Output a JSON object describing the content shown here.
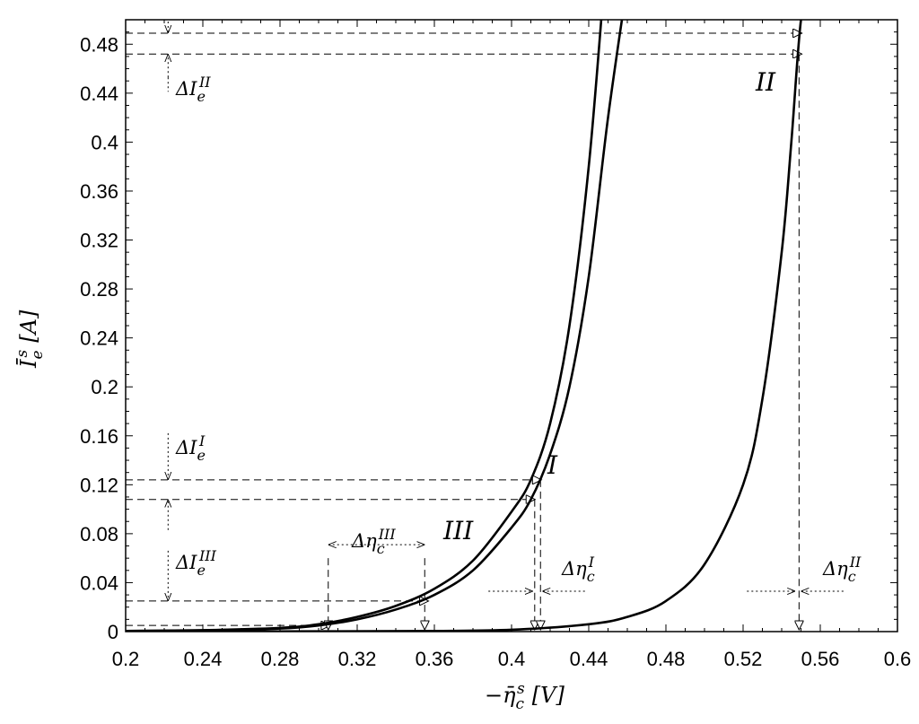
{
  "chart_data": {
    "type": "line",
    "xlabel_main": "−η̄",
    "xlabel_sup": "s",
    "xlabel_sub": "c",
    "xlabel_unit": "[V]",
    "ylabel_main": "Ī",
    "ylabel_sup": "s",
    "ylabel_sub": "e",
    "ylabel_unit": "[A]",
    "xlim": [
      0.2,
      0.6
    ],
    "ylim": [
      0,
      0.5
    ],
    "x_ticks": [
      "0.2",
      "0.24",
      "0.28",
      "0.32",
      "0.36",
      "0.4",
      "0.44",
      "0.48",
      "0.52",
      "0.56",
      "0.6"
    ],
    "y_ticks": [
      "0",
      "0.04",
      "0.08",
      "0.12",
      "0.16",
      "0.2",
      "0.24",
      "0.28",
      "0.32",
      "0.36",
      "0.4",
      "0.44",
      "0.48"
    ],
    "grid": false,
    "series": [
      {
        "name": "I",
        "x": [
          0.2,
          0.24,
          0.28,
          0.3,
          0.32,
          0.34,
          0.36,
          0.38,
          0.4,
          0.41,
          0.42,
          0.43,
          0.44,
          0.45,
          0.46
        ],
        "y": [
          0.0005,
          0.001,
          0.0025,
          0.005,
          0.01,
          0.018,
          0.03,
          0.05,
          0.085,
          0.108,
          0.145,
          0.2,
          0.29,
          0.42,
          0.55
        ]
      },
      {
        "name": "III",
        "x": [
          0.2,
          0.24,
          0.28,
          0.3,
          0.32,
          0.34,
          0.36,
          0.38,
          0.4,
          0.41,
          0.42,
          0.43,
          0.44,
          0.448
        ],
        "y": [
          0.0005,
          0.0012,
          0.003,
          0.006,
          0.012,
          0.021,
          0.035,
          0.058,
          0.098,
          0.124,
          0.17,
          0.25,
          0.38,
          0.55
        ]
      },
      {
        "name": "II",
        "x": [
          0.2,
          0.3,
          0.36,
          0.4,
          0.44,
          0.46,
          0.48,
          0.5,
          0.52,
          0.53,
          0.54,
          0.545,
          0.55,
          0.555
        ],
        "y": [
          0.0,
          0.0002,
          0.0005,
          0.0015,
          0.006,
          0.012,
          0.025,
          0.055,
          0.12,
          0.19,
          0.31,
          0.4,
          0.5,
          0.55
        ]
      }
    ],
    "curve_labels": [
      "I",
      "II",
      "III"
    ],
    "annotation_texts": {
      "dI_II": "ΔI",
      "dI_II_sub": "e",
      "dI_II_sup": "II",
      "dI_I": "ΔI",
      "dI_I_sub": "e",
      "dI_I_sup": "I",
      "dI_III": "ΔI",
      "dI_III_sub": "e",
      "dI_III_sup": "III",
      "dEta_III": "Δη",
      "dEta_III_sub": "c",
      "dEta_III_sup": "III",
      "dEta_I": "Δη",
      "dEta_I_sub": "c",
      "dEta_I_sup": "I",
      "dEta_II": "Δη",
      "dEta_II_sub": "c",
      "dEta_II_sup": "II"
    },
    "reference_values": {
      "dI_II_y": [
        0.489,
        0.472
      ],
      "dI_I_y": [
        0.124,
        0.108
      ],
      "dI_III_y": [
        0.025,
        0.005
      ],
      "dEta_III_x": [
        0.305,
        0.355
      ],
      "dEta_I_x": [
        0.412,
        0.415
      ],
      "dEta_II_x": [
        0.548,
        0.549
      ],
      "arrow_ref_x": 0.222
    }
  }
}
